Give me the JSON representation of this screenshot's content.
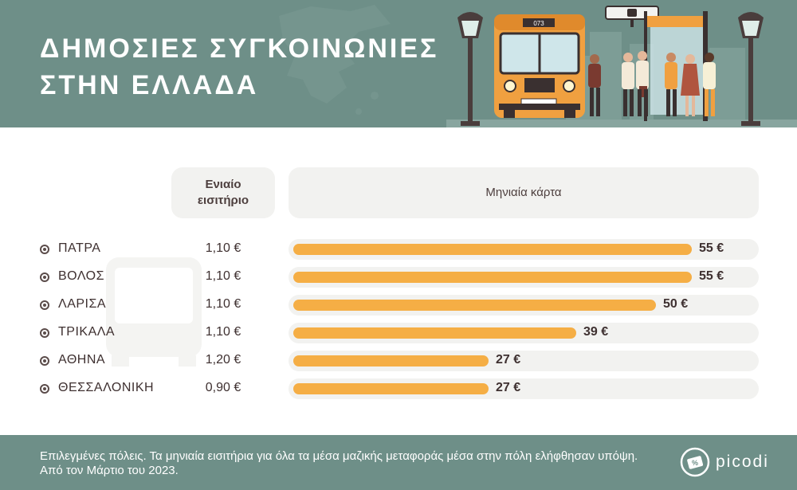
{
  "header": {
    "title_line1": "ΔΗΜΟΣΙΕΣ ΣΥΓΚΟΙΝΩΝΙΕΣ",
    "title_line2": "ΣΤΗΝ ΕΛΛΑΔΑ",
    "bus_number": "073"
  },
  "columns": {
    "single_line1": "Ενιαίο",
    "single_line2": "εισιτήριο",
    "monthly": "Μηνιαία κάρτα"
  },
  "chart_data": {
    "type": "bar",
    "orientation": "horizontal",
    "categories": [
      "ΠΑΤΡΑ",
      "ΒΟΛΟΣ",
      "ΛΑΡΙΣΑ",
      "ΤΡΙΚΑΛΑ",
      "ΑΘΗΝΑ",
      "ΘΕΣΣΑΛΟΝΙΚΗ"
    ],
    "single_ticket_labels": [
      "1,10 €",
      "1,10 €",
      "1,10 €",
      "1,10 €",
      "1,20 €",
      "0,90 €"
    ],
    "single_ticket_values": [
      1.1,
      1.1,
      1.1,
      1.1,
      1.2,
      0.9
    ],
    "series": [
      {
        "values": [
          55,
          55,
          50,
          39,
          27,
          27
        ]
      }
    ],
    "value_labels": [
      "55 €",
      "55 €",
      "50 €",
      "39 €",
      "27 €",
      "27 €"
    ],
    "xlim": [
      0,
      55
    ],
    "bar_color": "#f5ae45",
    "track_color": "#f2f2f0",
    "grid": false,
    "legend": "none"
  },
  "footer": {
    "note": "Επιλεγμένες πόλεις. Τα μηνιαία εισιτήρια για όλα τα μέσα μαζικής μεταφοράς μέσα στην πόλη ελήφθησαν υπόψη. Από τον Μάρτιο του 2023.",
    "brand": "picodi"
  },
  "colors": {
    "header_bg": "#6e8f88",
    "accent": "#f5ae45",
    "text": "#3e3030"
  }
}
